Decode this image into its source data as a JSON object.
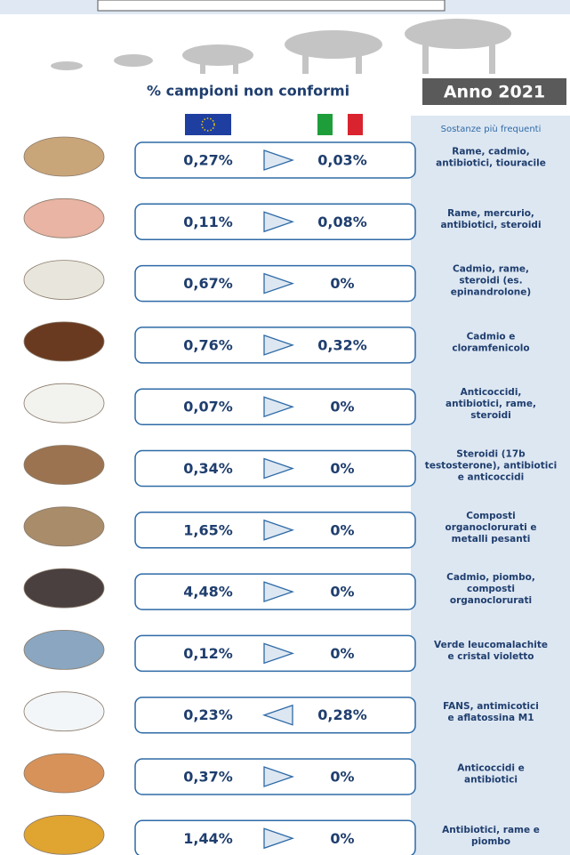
{
  "header": {
    "title": "% campioni non conformi",
    "year": "Anno 2021",
    "substances_heading": "Sostanze più frequenti"
  },
  "rows": [
    {
      "eu": "0,27%",
      "direction": "right",
      "it": "0,03%",
      "substances": [
        "Rame, cadmio,",
        "antibiotici, tiouracile"
      ]
    },
    {
      "eu": "0,11%",
      "direction": "right",
      "it": "0,08%",
      "substances": [
        "Rame, mercurio,",
        "antibiotici, steroidi"
      ]
    },
    {
      "eu": "0,67%",
      "direction": "right",
      "it": "0%",
      "substances": [
        "Cadmio, rame,",
        "steroidi (es.",
        "epinandrolone)"
      ]
    },
    {
      "eu": "0,76%",
      "direction": "right",
      "it": "0,32%",
      "substances": [
        "Cadmio e",
        "cloramfenicolo"
      ]
    },
    {
      "eu": "0,07%",
      "direction": "right",
      "it": "0%",
      "substances": [
        "Anticoccidi,",
        "antibiotici, rame,",
        "steroidi"
      ]
    },
    {
      "eu": "0,34%",
      "direction": "right",
      "it": "0%",
      "substances": [
        "Steroidi (17b",
        "testosterone), antibiotici",
        "e anticoccidi"
      ]
    },
    {
      "eu": "1,65%",
      "direction": "right",
      "it": "0%",
      "substances": [
        "Composti",
        "organoclorurati e",
        "metalli pesanti"
      ]
    },
    {
      "eu": "4,48%",
      "direction": "right",
      "it": "0%",
      "substances": [
        "Cadmio, piombo,",
        "composti",
        "organoclorurati"
      ]
    },
    {
      "eu": "0,12%",
      "direction": "right",
      "it": "0%",
      "substances": [
        "Verde leucomalachite",
        "e cristal violetto"
      ]
    },
    {
      "eu": "0,23%",
      "direction": "left",
      "it": "0,28%",
      "substances": [
        "FANS, antimicotici",
        "e aflatossina M1"
      ]
    },
    {
      "eu": "0,37%",
      "direction": "right",
      "it": "0%",
      "substances": [
        "Anticoccidi e",
        "antibiotici"
      ]
    },
    {
      "eu": "1,44%",
      "direction": "right",
      "it": "0%",
      "substances": [
        "Antibiotici, rame e",
        "piombo"
      ]
    }
  ]
}
